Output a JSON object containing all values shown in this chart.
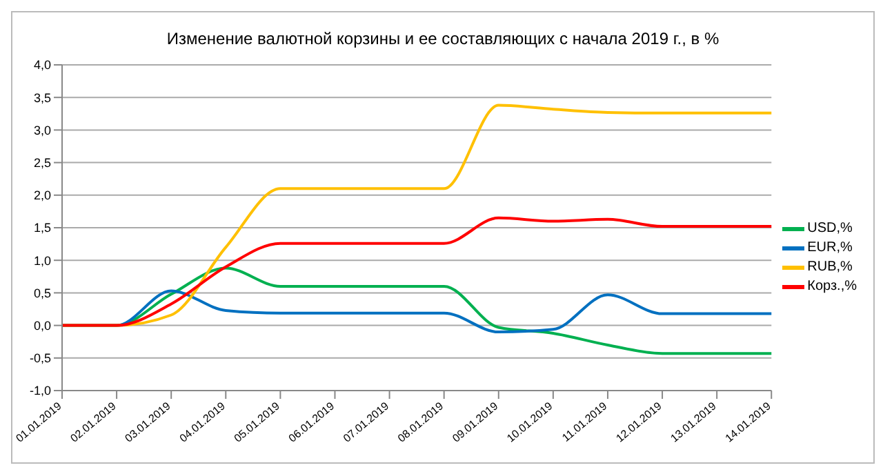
{
  "chart_data": {
    "type": "line",
    "title": "Изменение валютной корзины и ее составляющих с начала 2019 г., в %",
    "categories": [
      "01.01.2019",
      "02.01.2019",
      "03.01.2019",
      "04.01.2019",
      "05.01.2019",
      "06.01.2019",
      "07.01.2019",
      "08.01.2019",
      "09.01.2019",
      "10.01.2019",
      "11.01.2019",
      "12.01.2019",
      "13.01.2019",
      "14.01.2019"
    ],
    "series": [
      {
        "name": "USD,%",
        "color": "#00b050",
        "values": [
          0,
          0,
          0.48,
          0.88,
          0.6,
          0.6,
          0.6,
          0.6,
          -0.03,
          -0.12,
          -0.3,
          -0.43,
          -0.43,
          -0.43
        ]
      },
      {
        "name": "EUR,%",
        "color": "#0070c0",
        "values": [
          0,
          0,
          0.53,
          0.23,
          0.19,
          0.19,
          0.19,
          0.19,
          -0.1,
          -0.06,
          0.47,
          0.18,
          0.18,
          0.18
        ]
      },
      {
        "name": "RUB,%",
        "color": "#ffc000",
        "values": [
          0,
          0,
          0.16,
          1.2,
          2.1,
          2.1,
          2.1,
          2.1,
          3.38,
          3.32,
          3.27,
          3.26,
          3.26,
          3.26
        ]
      },
      {
        "name": "Корз.,%",
        "color": "#ff0000",
        "values": [
          0,
          0,
          0.33,
          0.9,
          1.26,
          1.26,
          1.26,
          1.26,
          1.65,
          1.6,
          1.63,
          1.52,
          1.52,
          1.52
        ]
      }
    ],
    "ylim": [
      -1,
      4
    ],
    "yticks": [
      {
        "value": -1,
        "label": "-1,0"
      },
      {
        "value": -0.5,
        "label": "-0,5"
      },
      {
        "value": 0,
        "label": "0,0"
      },
      {
        "value": 0.5,
        "label": "0,5"
      },
      {
        "value": 1,
        "label": "1,0"
      },
      {
        "value": 1.5,
        "label": "1,5"
      },
      {
        "value": 2,
        "label": "2,0"
      },
      {
        "value": 2.5,
        "label": "2,5"
      },
      {
        "value": 3,
        "label": "3,0"
      },
      {
        "value": 3.5,
        "label": "3,5"
      },
      {
        "value": 4,
        "label": "4,0"
      }
    ],
    "grid": "y",
    "legend": "right",
    "marker": "none",
    "line_style": "solid"
  }
}
